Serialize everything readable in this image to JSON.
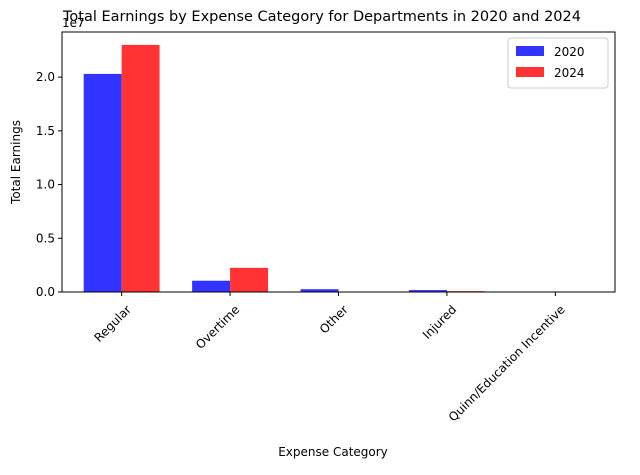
{
  "chart_data": {
    "type": "bar",
    "title": "Total Earnings by Expense Category for Departments in 2020 and 2024",
    "xlabel": "Expense Category",
    "ylabel": "Total Earnings",
    "y_offset_label": "1e7",
    "categories": [
      "Regular",
      "Overtime",
      "Other",
      "Injured",
      "Quinn/Education Incentive"
    ],
    "series": [
      {
        "name": "2020",
        "color": "#3333ff",
        "values": [
          20300000,
          1050000,
          260000,
          180000,
          0
        ]
      },
      {
        "name": "2024",
        "color": "#ff3333",
        "values": [
          23000000,
          2250000,
          0,
          80000,
          0
        ]
      }
    ],
    "ylim": [
      0,
      24200000
    ],
    "yticks": [
      0,
      5000000,
      10000000,
      15000000,
      20000000
    ],
    "ytick_labels": [
      "0.0",
      "0.5",
      "1.0",
      "1.5",
      "2.0"
    ],
    "grid": false,
    "legend_position": "top-right"
  }
}
